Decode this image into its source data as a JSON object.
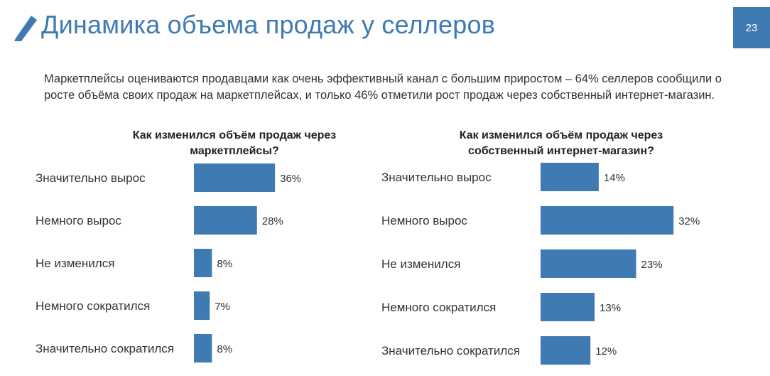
{
  "header": {
    "title": "Динамика объема продаж у селлеров",
    "page_number": "23",
    "accent_color": "#3f7ab3"
  },
  "intro": {
    "text": "Маркетплейсы оцениваются продавцами как очень эффективный канал с большим приростом – 64% селлеров сообщили о росте объёма своих продаж на маркетплейсах, и только 46% отметили рост продаж через собственный интернет-магазин."
  },
  "chart_data": [
    {
      "type": "bar",
      "orientation": "horizontal",
      "title": "Как изменился объём продаж через маркетплейсы?",
      "categories": [
        "Значительно вырос",
        "Немного вырос",
        "Не изменился",
        "Немного сократился",
        "Значительно сократился"
      ],
      "values": [
        36,
        28,
        8,
        7,
        8
      ],
      "value_labels": [
        "36%",
        "28%",
        "8%",
        "7%",
        "8%"
      ],
      "unit": "%",
      "xlim": [
        0,
        40
      ],
      "bar_color": "#3f7ab3",
      "grid": false,
      "legend": "none"
    },
    {
      "type": "bar",
      "orientation": "horizontal",
      "title": "Как изменился объём продаж через собственный интернет-магазин?",
      "categories": [
        "Значительно вырос",
        "Немного вырос",
        "Не изменился",
        "Немного сократился",
        "Значительно сократился"
      ],
      "values": [
        14,
        32,
        23,
        13,
        12
      ],
      "value_labels": [
        "14%",
        "32%",
        "23%",
        "13%",
        "12%"
      ],
      "unit": "%",
      "xlim": [
        0,
        40
      ],
      "bar_color": "#3f7ab3",
      "grid": false,
      "legend": "none"
    }
  ]
}
